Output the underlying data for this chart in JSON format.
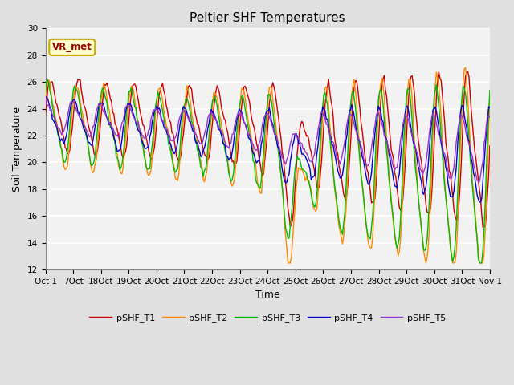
{
  "title": "Peltier SHF Temperatures",
  "xlabel": "Time",
  "ylabel": "Soil Temperature",
  "ylim": [
    12,
    30
  ],
  "annotation": "VR_met",
  "series_colors": {
    "pSHF_T1": "#cc0000",
    "pSHF_T2": "#ff8800",
    "pSHF_T3": "#00bb00",
    "pSHF_T4": "#0000cc",
    "pSHF_T5": "#9933cc"
  },
  "xtick_labels": [
    "Oct 1",
    "7Oct",
    "18Oct",
    "19Oct",
    "20Oct",
    "21Oct",
    "22Oct",
    "23Oct",
    "24Oct",
    "25Oct",
    "26Oct",
    "27Oct",
    "28Oct",
    "29Oct",
    "30Oct",
    "31Oct",
    "Nov 1"
  ],
  "figure_bg": "#e0e0e0",
  "axes_bg": "#f2f2f2",
  "grid_color": "#ffffff",
  "linewidth": 1.0,
  "title_fontsize": 11,
  "label_fontsize": 9,
  "tick_fontsize": 7.5
}
